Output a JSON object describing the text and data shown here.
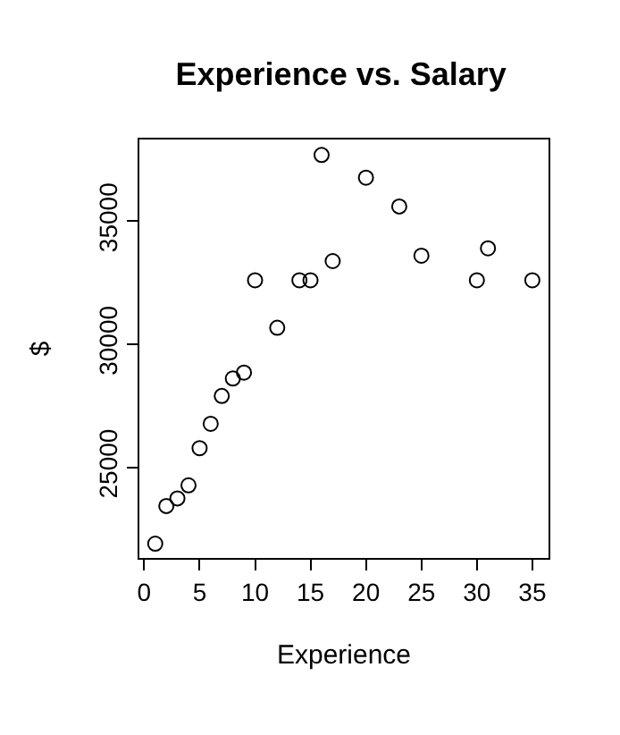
{
  "chart_data": {
    "type": "scatter",
    "title": "Experience vs. Salary",
    "xlabel": "Experience",
    "ylabel": "$",
    "x": [
      1,
      2,
      3,
      4,
      5,
      6,
      7,
      8,
      9,
      10,
      12,
      14,
      15,
      16,
      17,
      20,
      23,
      25,
      30,
      31,
      35
    ],
    "values": [
      21900,
      23430,
      23740,
      24270,
      25780,
      26770,
      27900,
      28610,
      28850,
      32600,
      30670,
      32600,
      32600,
      37690,
      33380,
      36770,
      35600,
      33600,
      32600,
      33900,
      32600
    ],
    "color": "#000000",
    "marker": "circle",
    "xlim": [
      -0.43,
      36.46
    ],
    "ylim": [
      21320,
      38320
    ],
    "xticks": [
      0,
      5,
      10,
      15,
      20,
      25,
      30,
      35
    ],
    "yticks": [
      25000,
      30000,
      35000
    ]
  }
}
